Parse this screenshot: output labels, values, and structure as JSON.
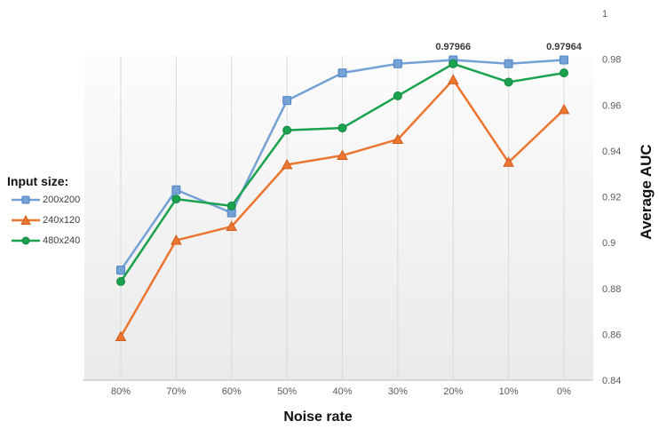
{
  "chart_data": {
    "type": "line",
    "title": "",
    "xlabel": "Noise rate",
    "ylabel": "Average AUC",
    "categories": [
      "80%",
      "70%",
      "60%",
      "50%",
      "40%",
      "30%",
      "20%",
      "10%",
      "0%"
    ],
    "ylim": [
      0.84,
      1
    ],
    "ytick_labels": [
      "1",
      "0.98",
      "0.96",
      "0.94",
      "0.92",
      "0.9",
      "0.88",
      "0.86",
      "0.84"
    ],
    "yticks": [
      1,
      0.98,
      0.96,
      0.94,
      0.92,
      0.9,
      0.88,
      0.86,
      0.84
    ],
    "grid": "vertical-only",
    "legend_position": "left",
    "legend_title": "Input size:",
    "series": [
      {
        "name": "200x200",
        "marker": "square",
        "color": "#74A1D6",
        "edge_color": "#5185C5",
        "values": [
          0.888,
          0.923,
          0.913,
          0.962,
          0.974,
          0.978,
          0.97966,
          0.978,
          0.97964
        ]
      },
      {
        "name": "240x120",
        "marker": "triangle",
        "color": "#EC7530",
        "edge_color": "#CE5E1E",
        "values": [
          0.859,
          0.901,
          0.907,
          0.934,
          0.938,
          0.945,
          0.971,
          0.935,
          0.958
        ]
      },
      {
        "name": "480x240",
        "marker": "circle",
        "color": "#1AA24E",
        "edge_color": "#128741",
        "values": [
          0.883,
          0.919,
          0.916,
          0.949,
          0.95,
          0.964,
          0.978,
          0.97,
          0.974
        ]
      }
    ],
    "annotations": [
      {
        "series": "200x200",
        "category": "20%",
        "text": "0.97966"
      },
      {
        "series": "200x200",
        "category": "0%",
        "text": "0.97964"
      }
    ],
    "colors": {
      "gridline": "#D9D9D9",
      "axis_line": "#BFBFBF",
      "tick_label": "#595959",
      "annotation": "#3B3B3B",
      "wall_top": "#FCFCFC",
      "wall_bottom": "#EAEAEA"
    }
  }
}
